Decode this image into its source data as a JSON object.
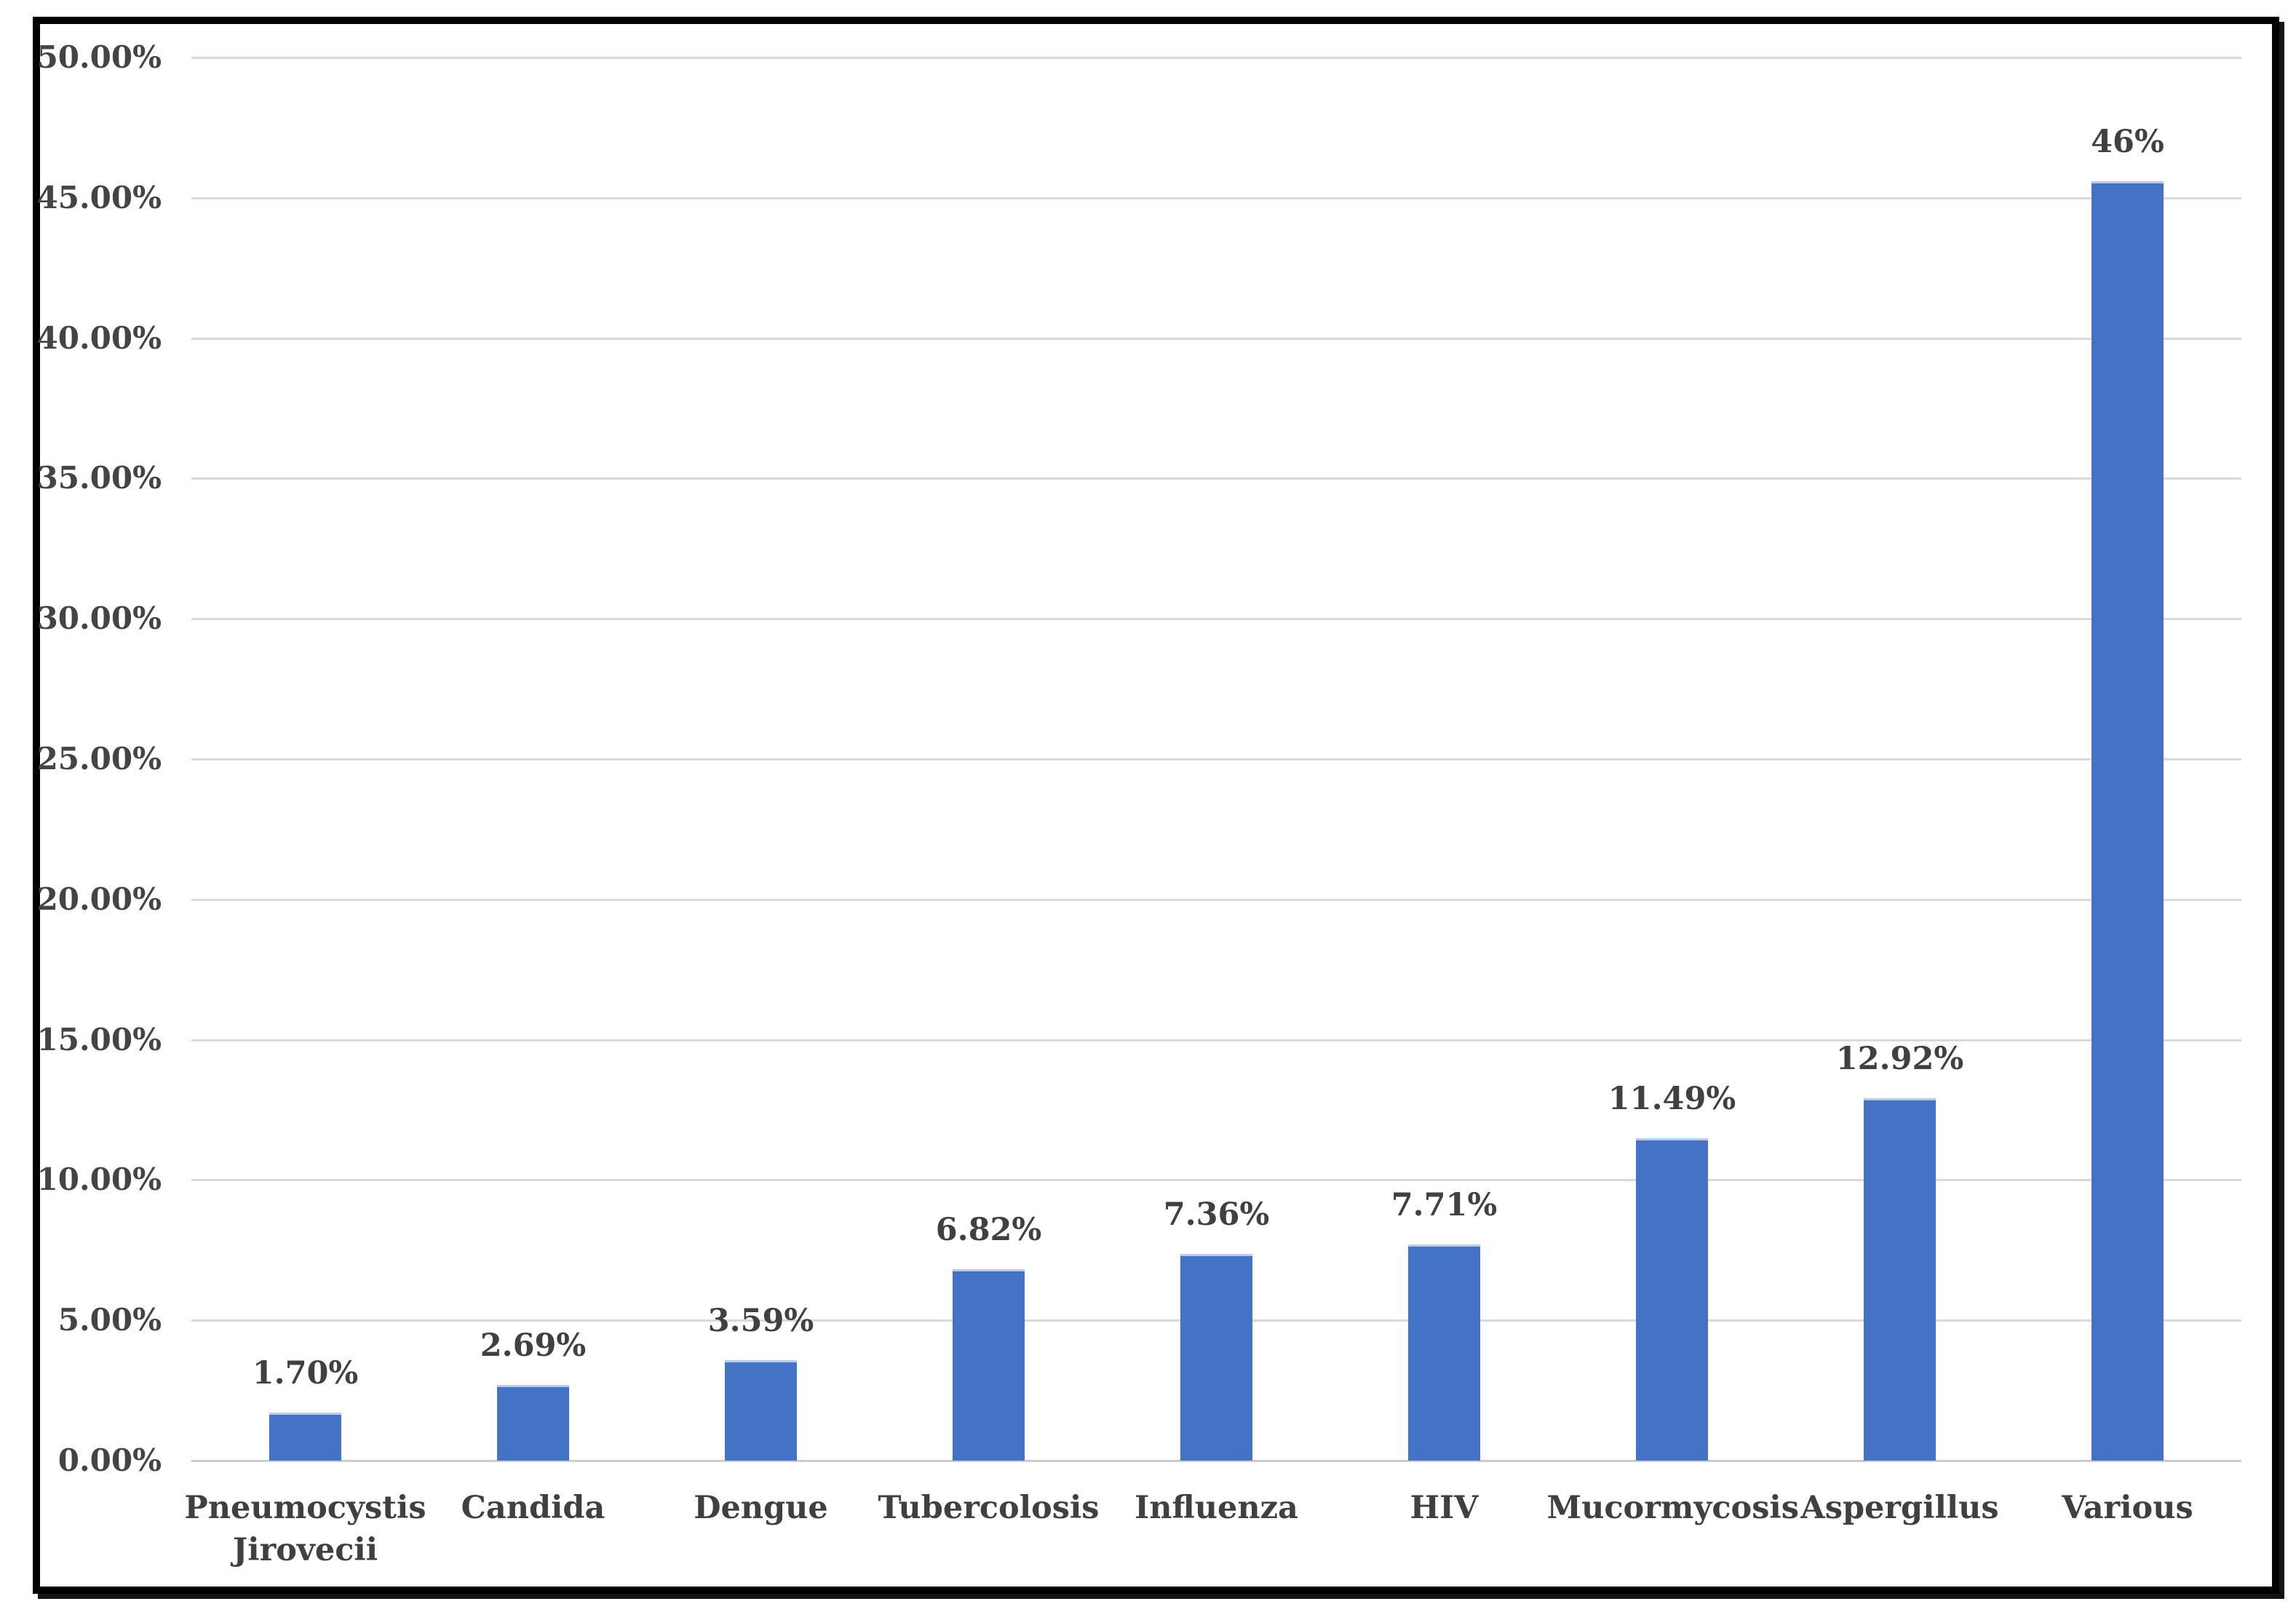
{
  "chart_data": {
    "type": "bar",
    "title": "",
    "xlabel": "",
    "ylabel": "",
    "categories": [
      "Pneumocystis Jirovecii",
      "Candida",
      "Dengue",
      "Tubercolosis",
      "Influenza",
      "HIV",
      "Mucormycosis",
      "Aspergillus",
      "Various"
    ],
    "values": [
      1.7,
      2.69,
      3.59,
      6.82,
      7.36,
      7.71,
      11.49,
      12.92,
      46
    ],
    "data_labels": [
      "1.70%",
      "2.69%",
      "3.59%",
      "6.82%",
      "7.36%",
      "7.71%",
      "11.49%",
      "12.92%",
      "46%"
    ],
    "bar_rendered_heights_pct": [
      1.7,
      2.69,
      3.59,
      6.82,
      7.36,
      7.71,
      11.49,
      12.92,
      45.6
    ],
    "ylim": [
      0,
      50
    ],
    "y_tick_step": 5,
    "y_ticks": [
      "0.00%",
      "5.00%",
      "10.00%",
      "15.00%",
      "20.00%",
      "25.00%",
      "30.00%",
      "35.00%",
      "40.00%",
      "45.00%",
      "50.00%"
    ],
    "grid": "horizontal-gridlines-on",
    "legend": "none",
    "colors": {
      "bar": "#4472c4",
      "bar_top_edge": "#b9cbea",
      "gridline": "#d9d9d9",
      "axis_line": "#cccccc",
      "label_text": "#404040",
      "tick_text": "#444444",
      "frame_border": "#000000",
      "background": "#ffffff"
    }
  }
}
